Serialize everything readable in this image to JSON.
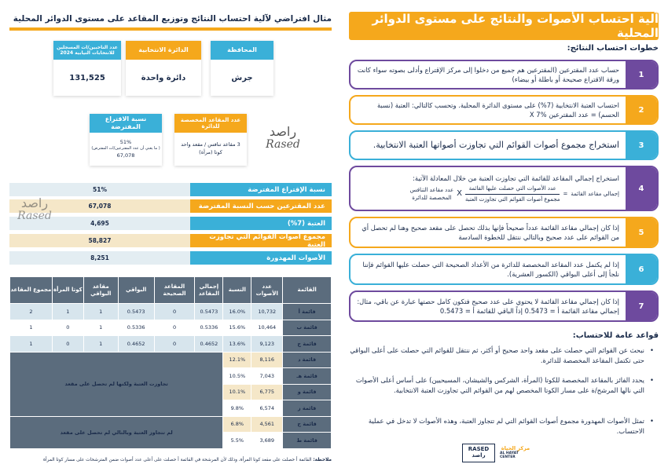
{
  "right": {
    "title": "آلية احتساب الأصوات والنتائج على مستوى الدوائر المحلية",
    "steps_heading": "خطوات احتساب النتائج:",
    "steps": [
      {
        "num": "1",
        "text": "حساب عدد المقترعين (المقترعين هم جميع من دخلوا إلى مركز الإقتراع وأدلى بصوته سواء كانت ورقة الاقتراع صحيحة أو باطلة أو بيضاء)"
      },
      {
        "num": "2",
        "text": "احتساب العتبة الانتخابية (7%) على مستوى الدائرة المحلية. وتحسب كالتالي: العتبة (نسبة الحسم) = عدد المقترعين X 7%"
      },
      {
        "num": "3",
        "text": "استخراج مجموع أصوات القوائم التي تجاوزت أصواتها العتبة الانتخابية."
      },
      {
        "num": "4",
        "text": "استخراج إجمالي المقاعد للقائمة التي تجاوزت العتبة من خلال المعادلة الآتية:",
        "formula": {
          "lhs": "إجمالي مقاعد القائمة",
          "eq": "=",
          "num1": "عدد الأصوات التي حصلت عليها القائمة",
          "den1": "مجموع أصوات القوائم التي تجاوزت العتبة",
          "times": "X",
          "num2": "عدد مقاعد التنافس",
          "den2": "المخصصة للدائرة"
        }
      },
      {
        "num": "5",
        "text": "إذا كان إجمالي مقاعد القائمة عدداً صحيحاً فإنها بذلك تحصل على مقعد صحيح وهنا لم تحصل أي من القوائم على عدد صحيح وبالتالي ننتقل للخطوة السادسة"
      },
      {
        "num": "6",
        "text": "إذا لم يكتمل عدد المقاعد المخصصة للدائرة من الأعداد الصحيحة التي حصلت عليها القوائم فإننا نلجأ إلى أعلى البواقي (الكسور العشرية)."
      },
      {
        "num": "7",
        "text": "إذا كان إجمالي مقاعد القائمة لا يحتوي على عدد صحيح فتكون كامل حصتها عبارة عن باقي، مثال: إجمالي مقاعد القائمة أ = 0.5473 إذاً الباقي للقائمة أ = 0.5473"
      }
    ],
    "rules_heading": "قواعد عامة للاحتساب:",
    "rules": [
      "نبحث عن القوائم التي حصلت على مقعد واحد صحيح أو أكثر، ثم ننتقل للقوائم التي حصلت على أعلى البواقي حتى تكتمل المقاعد المخصصة للدائرة.",
      "يحدد الفائز بالمقاعد المخصصة للكوتا (المرأة، الشركس والشيشان، المسيحيين) على أساس أعلى الأصوات التي نالها المرشح/ة على مسار الكوتا المخصص لهم من القوائم التي تجاوزت العتبة الانتخابية.",
      "تمثل الأصوات المهدورة مجموع أصوات القوائم التي لم تتجاوز العتبة، وهذه الأصوات لا تدخل في عملية الاحتساب."
    ],
    "logos": {
      "rased_en": "RASED",
      "rased_ar": "راصد",
      "hayat_ar": "مركز الحياة",
      "hayat_en": "AL HAYAT CENTER"
    }
  },
  "left": {
    "title": "مثال افتراضي لآلية احتساب النتائج وتوزيع المقاعد على مستوى الدوائر المحلية",
    "cards": {
      "governorate": {
        "head": "المحافظة",
        "value": "جرش"
      },
      "district": {
        "head": "الدائرة الانتخابية",
        "value": "دائرة واحدة"
      },
      "registered": {
        "head": "عدد الناخبين/ات المسجلين للانتخابات النيابية 2024",
        "value": "131,525"
      },
      "seats": {
        "head": "عدد المقاعد المخصصة للدائرة",
        "value": "3 مقاعد تنافس / مقعد واحد كوتا (مرأة)"
      },
      "turnout": {
        "head": "نسبة الاقتراع المفترضة",
        "line1": "51%",
        "line2": "( ما يعني أن عدد المقترعين/ات المفترض)",
        "line3": "67,078"
      }
    },
    "watermark": {
      "ar": "راصد",
      "en": "Rased"
    },
    "summary": [
      {
        "label": "نسبة الإقتراع المفترضة",
        "value": "51%"
      },
      {
        "label": "عدد المقترعين حسب النسبة المفترضة",
        "value": "67,078"
      },
      {
        "label": "العتبة (7%)",
        "value": "4,695"
      },
      {
        "label": "مجموع أصوات القوائم التي تجاوزت العتبة",
        "value": "58,827"
      },
      {
        "label": "الأصوات المهدورة",
        "value": "8,251"
      }
    ],
    "table": {
      "headers": [
        "القائمة",
        "عدد الأصوات",
        "النسبة",
        "إجمالي المقاعد",
        "المقاعد الصحيحة",
        "البواقي",
        "مقاعد البواقي",
        "كوتا المرأة",
        "مجموع المقاعد"
      ],
      "rows": [
        {
          "name": "قائمة أ",
          "votes": "10,732",
          "pct": "16.0%",
          "total": "0.5473",
          "whole": "0",
          "rem": "0.5473",
          "remseats": "1",
          "quota": "1",
          "sum": "2"
        },
        {
          "name": "قائمة ب",
          "votes": "10,464",
          "pct": "15.6%",
          "total": "0.5336",
          "whole": "0",
          "rem": "0.5336",
          "remseats": "1",
          "quota": "0",
          "sum": "1"
        },
        {
          "name": "قائمة ج",
          "votes": "9,123",
          "pct": "13.6%",
          "total": "0.4652",
          "whole": "0",
          "rem": "0.4652",
          "remseats": "1",
          "quota": "0",
          "sum": "1"
        },
        {
          "name": "قائمة د",
          "votes": "8,116",
          "pct": "12.1%"
        },
        {
          "name": "قائمة هـ",
          "votes": "7,043",
          "pct": "10.5%"
        },
        {
          "name": "قائمة و",
          "votes": "6,775",
          "pct": "10.1%"
        },
        {
          "name": "قائمة ز",
          "votes": "6,574",
          "pct": "9.8%"
        },
        {
          "name": "قائمة ح",
          "votes": "4,561",
          "pct": "6.8%"
        },
        {
          "name": "قائمة ط",
          "votes": "3,689",
          "pct": "5.5%"
        }
      ],
      "group1": "تجاوزت العتبة ولكنها لم تحصل على مقعد",
      "group2": "لم تتجاوز العتبة وبالتالي لم تحصل على مقعد"
    },
    "note_label": "ملاحظة:",
    "note_text": "القائمة أ حصلت على مقعد كوتا المرأة، وذلك لأن المرشحة في القائمة أ حصلت على أعلى عدد أصوات ضمن المترشحات على مسار كوتا المرأة"
  }
}
